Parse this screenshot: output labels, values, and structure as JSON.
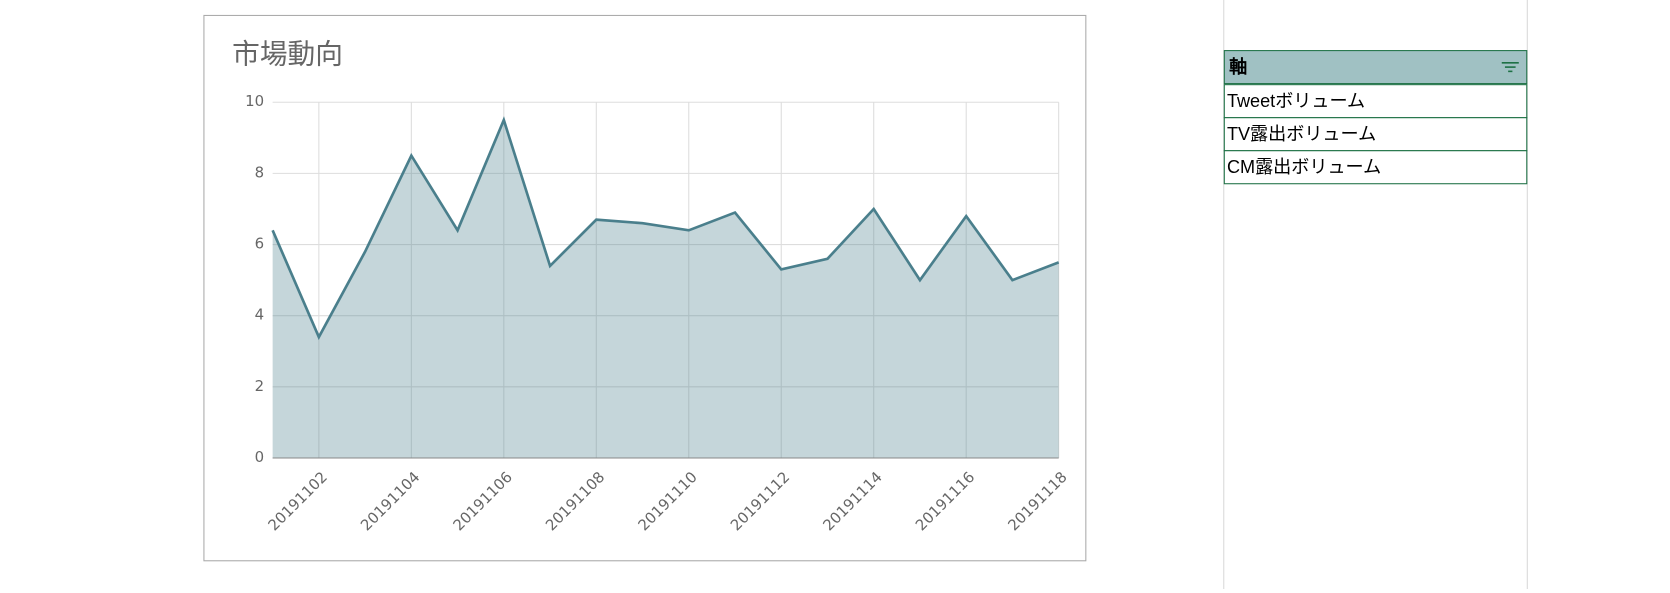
{
  "chart_data": {
    "type": "area",
    "title": "市場動向",
    "categories": [
      null,
      "20191102",
      null,
      "20191104",
      null,
      "20191106",
      null,
      "20191108",
      null,
      "20191110",
      null,
      "20191112",
      null,
      "20191114",
      null,
      "20191116",
      null,
      "20191118"
    ],
    "values": [
      6.4,
      3.4,
      5.8,
      8.5,
      6.4,
      9.5,
      5.4,
      6.7,
      6.6,
      6.4,
      6.9,
      5.3,
      5.6,
      7.0,
      5.0,
      6.8,
      5.0,
      5.5
    ],
    "color": "#4a7f8c",
    "ylim": [
      0,
      10
    ],
    "yticks": [
      0,
      2,
      4,
      6,
      8,
      10
    ],
    "grid": true
  },
  "slicer": {
    "header": "軸",
    "items": [
      "Tweetボリューム",
      "TV露出ボリューム",
      "CM露出ボリューム"
    ]
  }
}
